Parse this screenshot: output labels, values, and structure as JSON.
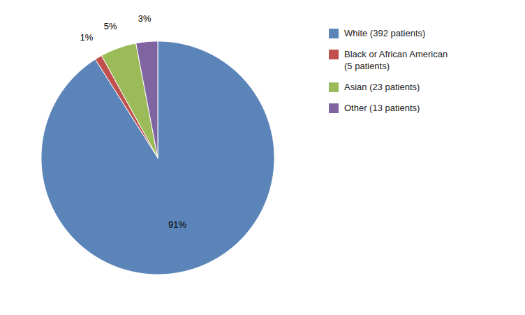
{
  "chart_data": {
    "type": "pie",
    "categories": [
      "White (392 patients)",
      "Black or African American\n(5 patients)",
      "Asian (23 patients)",
      "Other (13 patients)"
    ],
    "values": [
      91,
      1,
      5,
      3
    ],
    "value_labels": [
      "91%",
      "1%",
      "5%",
      "3%"
    ],
    "colors": [
      "#5b84b8",
      "#c0504d",
      "#9bbb59",
      "#8064a2"
    ],
    "data_labels": true,
    "legend": "right"
  }
}
